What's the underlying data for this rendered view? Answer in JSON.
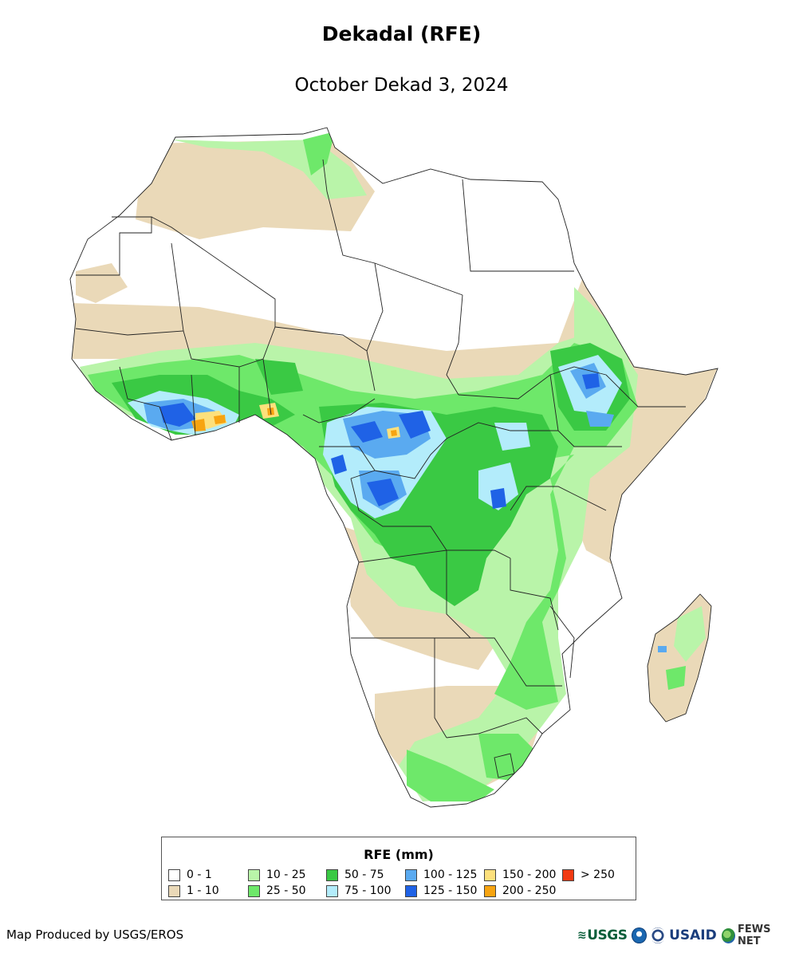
{
  "header": {
    "title": "Dekadal (RFE)",
    "subtitle": "October Dekad 3, 2024"
  },
  "legend": {
    "title": "RFE (mm)",
    "items": [
      {
        "label": "0 - 1",
        "color": "#ffffff"
      },
      {
        "label": "1 - 10",
        "color": "#ead9b8"
      },
      {
        "label": "10 - 25",
        "color": "#b9f4a9"
      },
      {
        "label": "25 - 50",
        "color": "#6ee86a"
      },
      {
        "label": "50 - 75",
        "color": "#3ac944"
      },
      {
        "label": "75 - 100",
        "color": "#b3ecfb"
      },
      {
        "label": "100 - 125",
        "color": "#5aaaf0"
      },
      {
        "label": "125 - 150",
        "color": "#1f62e6"
      },
      {
        "label": "150 - 200",
        "color": "#fde07c"
      },
      {
        "label": "200 - 250",
        "color": "#f7a411"
      },
      {
        "label": "> 250",
        "color": "#f23a12"
      }
    ]
  },
  "footer": {
    "credit": "Map Produced by USGS/EROS",
    "logos": {
      "usgs": "USGS",
      "usaid": "USAID",
      "fews": "FEWS NET",
      "icons": [
        "usgs-logo-icon",
        "noaa-logo-icon",
        "state-seal-icon",
        "globe-icon"
      ]
    }
  }
}
